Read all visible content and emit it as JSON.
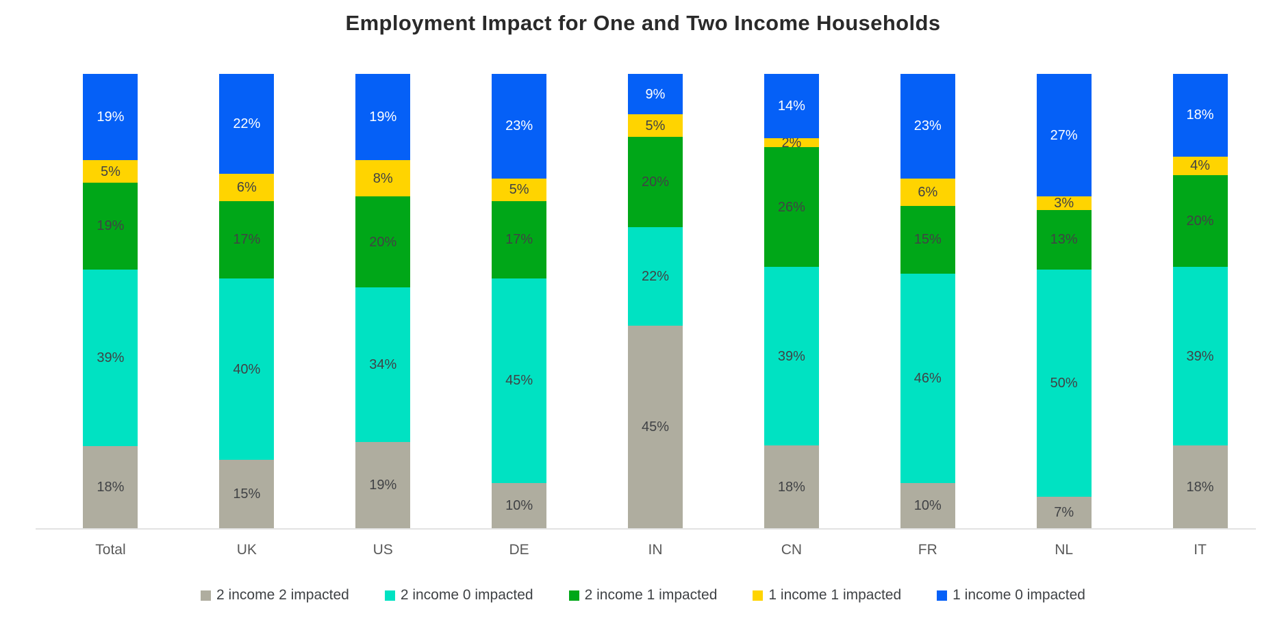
{
  "title": "Employment Impact for One and Two Income Households",
  "colors": {
    "gray": "#afad9f",
    "teal": "#00e2c2",
    "green": "#00a718",
    "yellow": "#ffd400",
    "blue": "#0560f7",
    "axis_line": "#e2e2e2",
    "dark_label": "#404245",
    "category_label": "#595959",
    "title_text": "#2a2a2a"
  },
  "chart_data": {
    "type": "bar",
    "subtype": "stacked-100-percent",
    "title": "Employment Impact for One and Two Income Households",
    "xlabel": "",
    "ylabel": "",
    "grid": false,
    "legend_position": "bottom",
    "value_suffix": "%",
    "categories": [
      "Total",
      "UK",
      "US",
      "DE",
      "IN",
      "CN",
      "FR",
      "NL",
      "IT"
    ],
    "series": [
      {
        "name": "2 income 2 impacted",
        "color": "#afad9f",
        "label_color": "#404245",
        "values": [
          18,
          15,
          19,
          10,
          45,
          18,
          10,
          7,
          18
        ]
      },
      {
        "name": "2 income 0 impacted",
        "color": "#00e2c2",
        "label_color": "#404245",
        "values": [
          39,
          40,
          34,
          45,
          22,
          39,
          46,
          50,
          39
        ]
      },
      {
        "name": "2 income 1 impacted",
        "color": "#00a718",
        "label_color": "#404245",
        "values": [
          19,
          17,
          20,
          17,
          20,
          26,
          15,
          13,
          20
        ]
      },
      {
        "name": "1 income 1 impacted",
        "color": "#ffd400",
        "label_color": "#404245",
        "values": [
          5,
          6,
          8,
          5,
          5,
          2,
          6,
          3,
          4
        ]
      },
      {
        "name": "1 income 0 impacted",
        "color": "#0560f7",
        "label_color": "#ffffff",
        "values": [
          19,
          22,
          19,
          23,
          9,
          14,
          23,
          27,
          18
        ]
      }
    ]
  }
}
